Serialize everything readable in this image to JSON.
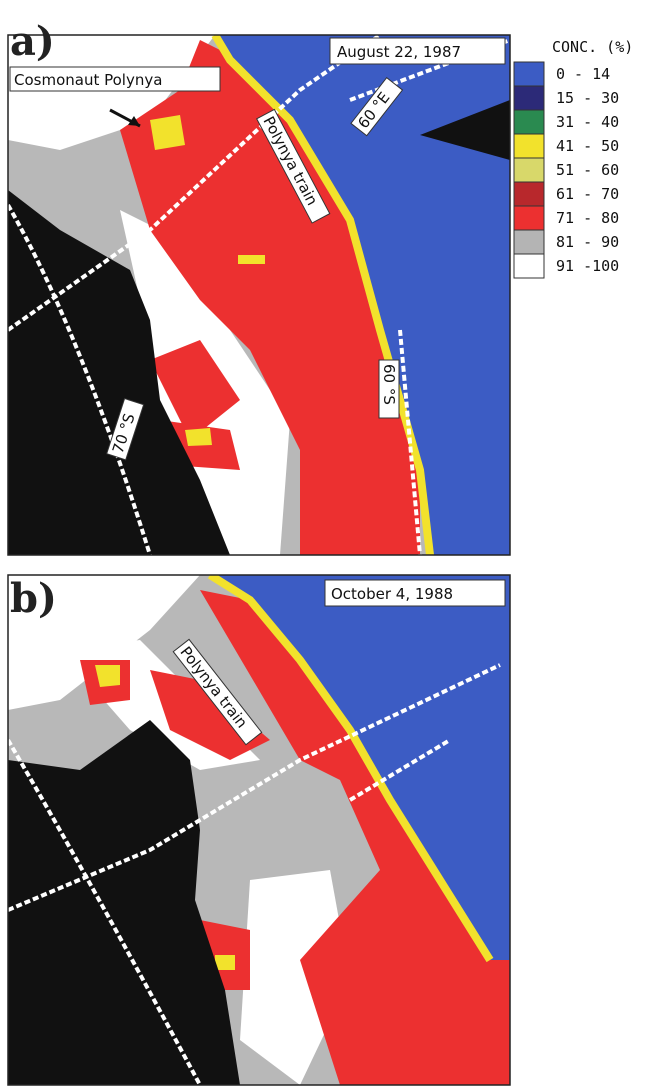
{
  "panels": [
    {
      "label": "a)",
      "date": "August 22, 1987",
      "annotations": [
        "Cosmonaut Polynya",
        "Polynya train",
        "60 °E",
        "60 °S",
        "70 °S"
      ]
    },
    {
      "label": "b)",
      "date": "October 4, 1988",
      "annotations": [
        "Polynya train"
      ]
    }
  ],
  "legend": {
    "title": "CONC. (%)",
    "items": [
      {
        "label": "0 - 14",
        "color": "#3c5cc4"
      },
      {
        "label": "15 - 30",
        "color": "#2c2a78"
      },
      {
        "label": "31 - 40",
        "color": "#2a8a50"
      },
      {
        "label": "41 - 50",
        "color": "#f2e22c"
      },
      {
        "label": "51 - 60",
        "color": "#d8d86a"
      },
      {
        "label": "61 - 70",
        "color": "#b8282c"
      },
      {
        "label": "71 - 80",
        "color": "#ec3030"
      },
      {
        "label": "81 - 90",
        "color": "#b4b4b4"
      },
      {
        "label": "91 -100",
        "color": "#ffffff"
      }
    ]
  }
}
